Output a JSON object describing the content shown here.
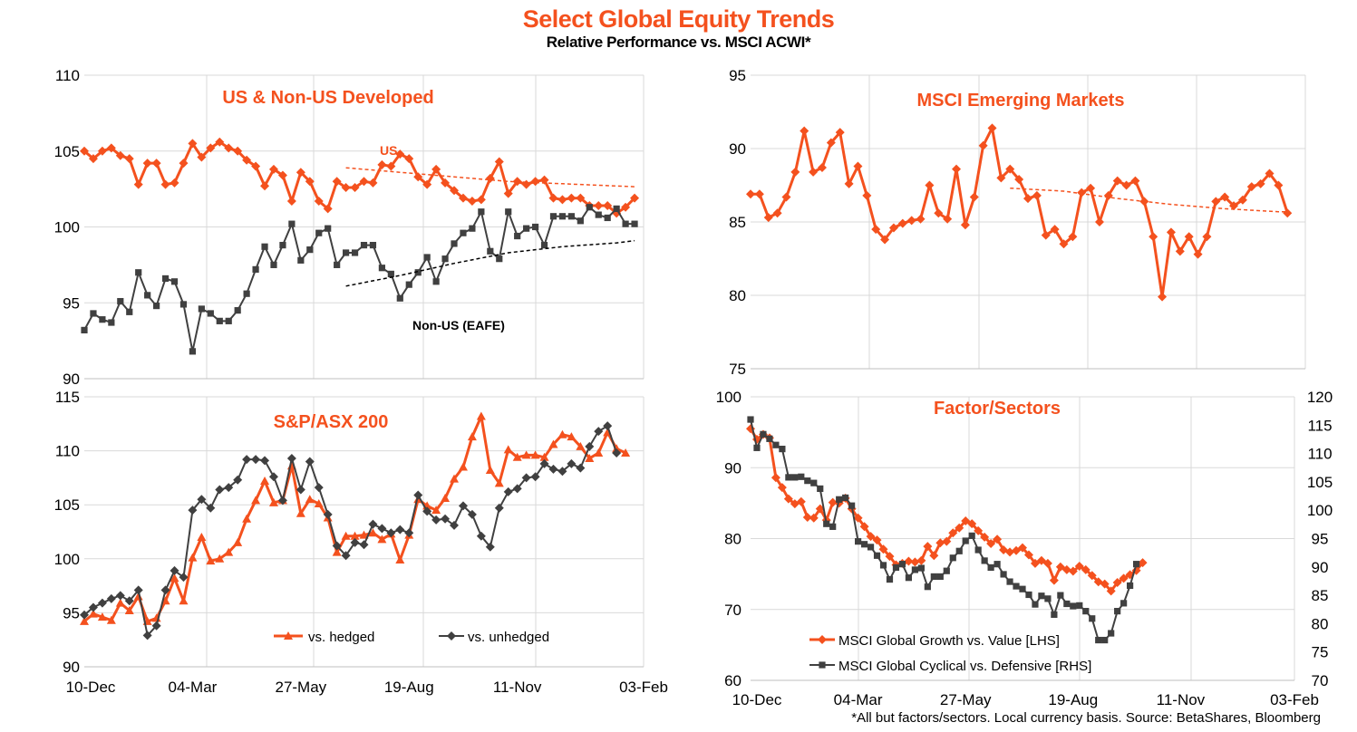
{
  "title": "Select Global Equity Trends",
  "subtitle": "Relative Performance vs. MSCI ACWI*",
  "footnote": "*All but factors/sectors. Local currency basis. Source: BetaShares, Bloomberg",
  "colors": {
    "orange": "#F4511E",
    "dark": "#404040",
    "black": "#000000",
    "grid": "#D9D9D9"
  },
  "chart_data": [
    {
      "id": "us-dev",
      "type": "line",
      "title": "US & Non-US Developed",
      "ylim": [
        90,
        110
      ],
      "yticks": [
        90,
        95,
        100,
        105,
        110
      ],
      "xlim": [
        0,
        62
      ],
      "xticks": [
        0,
        12,
        24,
        36,
        48,
        60
      ],
      "xtick_labels": [],
      "annotations": [
        "US",
        "Non-US (EAFE)"
      ],
      "series": [
        {
          "name": "US",
          "color": "#F4511E",
          "marker": "diamond",
          "values": [
            105,
            104.5,
            105,
            105.2,
            104.7,
            104.5,
            102.8,
            104.2,
            104.2,
            102.8,
            102.9,
            104.2,
            105.5,
            104.6,
            105.2,
            105.6,
            105.2,
            105,
            104.4,
            104,
            102.7,
            103.8,
            103.4,
            101.7,
            103.6,
            103,
            101.7,
            101.2,
            103,
            102.6,
            102.6,
            103,
            102.9,
            104.1,
            104,
            104.8,
            104.5,
            103.3,
            102.8,
            103.8,
            102.9,
            102.4,
            101.9,
            101.7,
            101.8,
            103.2,
            104.3,
            102.2,
            103,
            102.8,
            103,
            103.1,
            101.9,
            101.8,
            101.9,
            101.9,
            101.4,
            101.4,
            101.4,
            100.9,
            101.3,
            101.9
          ]
        },
        {
          "name": "US trend",
          "color": "#F4511E",
          "dashed": true,
          "x": [
            29,
            35,
            41,
            47,
            53,
            59,
            61
          ],
          "values": [
            103.9,
            103.6,
            103.3,
            103.0,
            102.85,
            102.7,
            102.65
          ]
        },
        {
          "name": "Non-US (EAFE)",
          "color": "#404040",
          "marker": "square",
          "values": [
            93.2,
            94.3,
            93.9,
            93.7,
            95.1,
            94.4,
            97,
            95.5,
            94.8,
            96.6,
            96.4,
            94.9,
            91.8,
            94.6,
            94.3,
            93.8,
            93.8,
            94.5,
            95.6,
            97.2,
            98.7,
            97.5,
            98.8,
            100.2,
            97.8,
            98.5,
            99.6,
            99.9,
            97.5,
            98.3,
            98.3,
            98.8,
            98.8,
            97.3,
            96.9,
            95.3,
            96.2,
            97,
            98,
            96.4,
            97.9,
            98.9,
            99.6,
            99.9,
            101,
            98.4,
            97.9,
            101,
            99.4,
            99.9,
            100,
            98.8,
            100.7,
            100.7,
            100.7,
            100.4,
            101.3,
            100.8,
            100.6,
            101.2,
            100.2,
            100.2
          ]
        },
        {
          "name": "Non-US trend",
          "color": "#000000",
          "dashed": true,
          "x": [
            29,
            35,
            41,
            47,
            53,
            59,
            61
          ],
          "values": [
            96.1,
            96.8,
            97.6,
            98.3,
            98.7,
            98.95,
            99.1
          ]
        }
      ]
    },
    {
      "id": "em",
      "type": "line",
      "title": "MSCI Emerging Markets",
      "ylim": [
        75,
        95
      ],
      "yticks": [
        75,
        80,
        85,
        90,
        95
      ],
      "xlim": [
        0,
        62
      ],
      "xticks": [
        0,
        12,
        24,
        36,
        48,
        60
      ],
      "xtick_labels": [],
      "series": [
        {
          "name": "MSCI Emerging Markets",
          "color": "#F4511E",
          "marker": "diamond",
          "values": [
            86.9,
            86.9,
            85.3,
            85.6,
            86.7,
            88.4,
            91.2,
            88.4,
            88.7,
            90.4,
            91.1,
            87.6,
            88.8,
            86.8,
            84.5,
            83.8,
            84.6,
            84.9,
            85.1,
            85.2,
            87.5,
            85.6,
            85.2,
            88.6,
            84.8,
            86.7,
            90.2,
            91.4,
            88,
            88.6,
            87.9,
            86.6,
            86.8,
            84.1,
            84.5,
            83.5,
            84,
            87,
            87.3,
            85,
            86.8,
            87.8,
            87.5,
            87.8,
            86.4,
            84,
            79.9,
            84.3,
            83,
            84,
            82.8,
            84,
            86.4,
            86.7,
            86.1,
            86.5,
            87.4,
            87.6,
            88.3,
            87.5,
            85.6
          ]
        },
        {
          "name": "EM trend",
          "color": "#F4511E",
          "dashed": true,
          "x": [
            29,
            35,
            41,
            47,
            53,
            59,
            60
          ],
          "values": [
            87.3,
            87.1,
            86.6,
            86.2,
            85.9,
            85.7,
            85.7
          ]
        }
      ]
    },
    {
      "id": "asx",
      "type": "line",
      "title": "S&P/ASX 200",
      "ylim": [
        90,
        115
      ],
      "yticks": [
        90,
        95,
        100,
        105,
        110,
        115
      ],
      "xlim": [
        0,
        62
      ],
      "xticks": [
        0,
        12,
        24,
        36,
        48,
        60
      ],
      "xtick_labels": [
        "10-Dec",
        "04-Mar",
        "27-May",
        "19-Aug",
        "11-Nov",
        "03-Feb"
      ],
      "legend": [
        "vs. hedged",
        "vs. unhedged"
      ],
      "series": [
        {
          "name": "vs. hedged",
          "color": "#F4511E",
          "marker": "triangle",
          "values": [
            94.2,
            94.9,
            94.6,
            94.3,
            95.9,
            95.2,
            96.5,
            94.2,
            94.5,
            96.1,
            98.2,
            96.1,
            100.1,
            102,
            99.8,
            100,
            100.6,
            101.5,
            103.7,
            105.4,
            107.2,
            105.2,
            105.4,
            108.6,
            104.2,
            105.5,
            105.1,
            103.8,
            100.6,
            102.1,
            102.1,
            102.2,
            102.4,
            101.8,
            102.3,
            99.9,
            102.2,
            105.5,
            104.9,
            104.5,
            105.6,
            107.4,
            108.5,
            111.3,
            113.2,
            108.2,
            107,
            110.1,
            109.4,
            109.6,
            109.6,
            109.4,
            110.6,
            111.5,
            111.3,
            110.4,
            109.3,
            109.8,
            111.7,
            110.2,
            109.8
          ]
        },
        {
          "name": "vs. unhedged",
          "color": "#404040",
          "marker": "diamond",
          "values": [
            94.8,
            95.5,
            95.9,
            96.3,
            96.6,
            96.1,
            97.1,
            92.9,
            93.8,
            97.1,
            98.9,
            98.3,
            104.5,
            105.5,
            104.7,
            106.4,
            106.6,
            107.3,
            109.2,
            109.2,
            109.1,
            107.6,
            105.4,
            109.3,
            106.4,
            109,
            106.6,
            104.1,
            101.2,
            100.3,
            101.5,
            101.3,
            103.2,
            102.8,
            102.4,
            102.7,
            102.4,
            105.9,
            104.4,
            103.6,
            103.7,
            103.1,
            104.9,
            104.1,
            102.1,
            101.1,
            104.7,
            106.2,
            106.5,
            107.5,
            107.6,
            108.8,
            108.3,
            108.1,
            108.8,
            108.4,
            110.4,
            111.8,
            112.3,
            109.8
          ]
        }
      ]
    },
    {
      "id": "factor",
      "type": "line",
      "title": "Factor/Sectors",
      "ylim": [
        60,
        100
      ],
      "yticks": [
        60,
        70,
        80,
        90,
        100
      ],
      "y2lim": [
        70,
        120
      ],
      "y2ticks": [
        70,
        75,
        80,
        85,
        90,
        95,
        100,
        105,
        110,
        115,
        120
      ],
      "xlim": [
        0,
        86
      ],
      "xticks": [
        0,
        17,
        34,
        51,
        68,
        85
      ],
      "xtick_labels": [
        "10-Dec",
        "04-Mar",
        "27-May",
        "19-Aug",
        "11-Nov",
        "03-Feb"
      ],
      "legend": [
        "MSCI Global Growth vs. Value [LHS]",
        "MSCI Global Cyclical vs. Defensive [RHS]"
      ],
      "series": [
        {
          "name": "MSCI Global Growth vs. Value [LHS]",
          "color": "#F4511E",
          "marker": "diamond",
          "axis": "left",
          "values": [
            95.5,
            94,
            94.7,
            94.2,
            88.6,
            87.2,
            85.6,
            84.9,
            85.2,
            83,
            82.9,
            84.2,
            82.6,
            85.1,
            85,
            85.7,
            84.2,
            82.9,
            81.7,
            80.3,
            79.8,
            78.5,
            77.5,
            76.3,
            76.5,
            76.8,
            76.7,
            76.9,
            78.9,
            77.6,
            79.4,
            79.6,
            80.8,
            81.5,
            82.5,
            82.1,
            81.1,
            80.2,
            79.3,
            79.9,
            78.4,
            78.1,
            78.3,
            78.7,
            77.7,
            76.5,
            76.9,
            76.5,
            74.1,
            76,
            75.6,
            75.4,
            76.1,
            75.6,
            74.8,
            73.9,
            73.6,
            72.6,
            73.8,
            74.4,
            74.9,
            75.5,
            76.6
          ]
        },
        {
          "name": "MSCI Global Cyclical vs. Defensive [RHS]",
          "color": "#404040",
          "marker": "square",
          "axis": "right",
          "values": [
            116,
            111,
            113.4,
            112.6,
            111.5,
            110.8,
            105.8,
            105.8,
            105.9,
            105.2,
            104.8,
            103.8,
            97.6,
            97.1,
            101.9,
            102.2,
            100.8,
            94.5,
            94,
            93.5,
            92,
            90.3,
            87.8,
            89.9,
            90.5,
            88.1,
            89.5,
            89.8,
            86.5,
            88.3,
            88.3,
            89.3,
            91.6,
            92.8,
            94.6,
            95.5,
            93,
            91.1,
            89.9,
            90.5,
            88.7,
            87.4,
            86.6,
            86.1,
            85.1,
            83.4,
            84.9,
            84.4,
            81.6,
            85,
            83.5,
            83.1,
            83.2,
            82.2,
            80.9,
            77.1,
            77.1,
            78.3,
            82.2,
            83.6,
            86.7,
            90.5
          ]
        }
      ]
    }
  ]
}
